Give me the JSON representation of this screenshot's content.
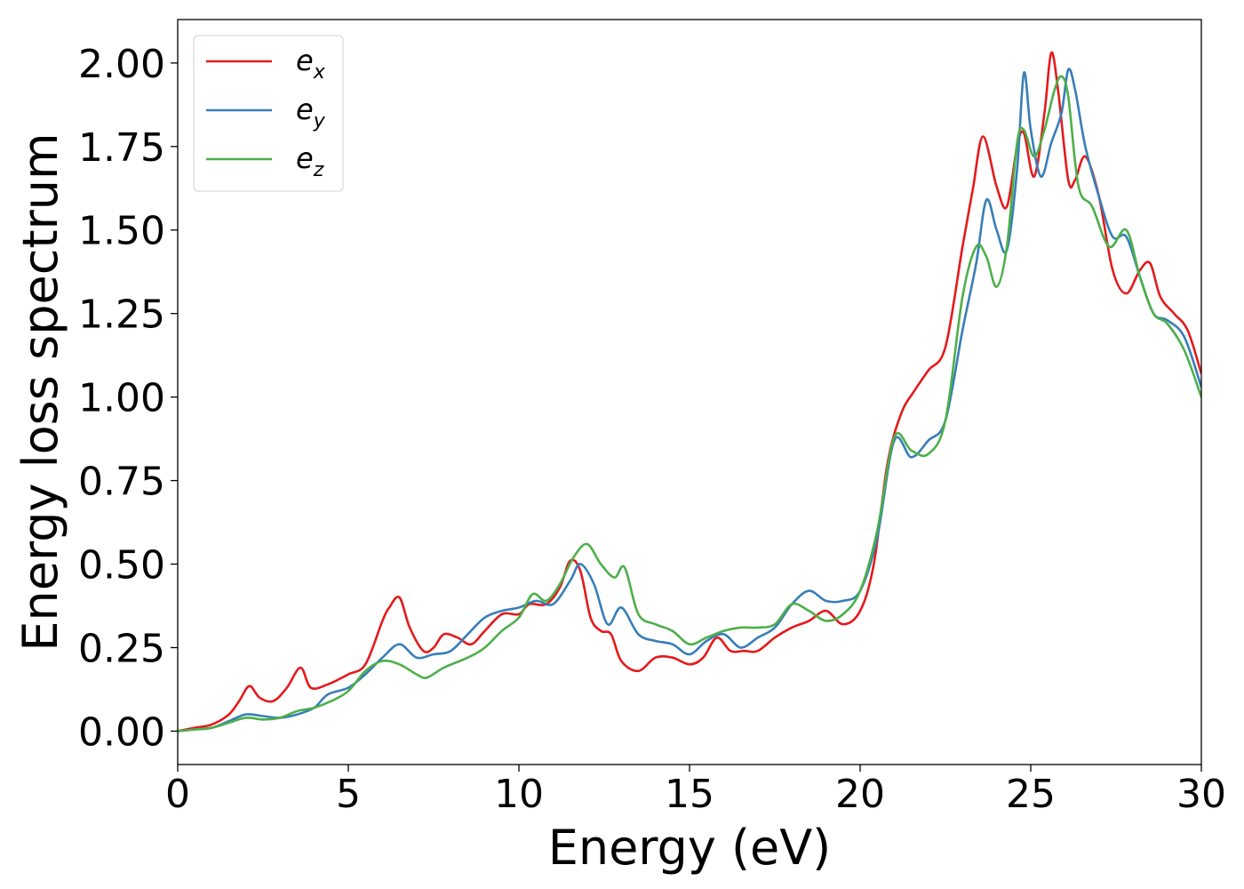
{
  "chart_data": {
    "type": "line",
    "xlabel": "Energy (eV)",
    "ylabel": "Energy loss spectrum",
    "xlim": [
      0,
      30
    ],
    "ylim": [
      -0.1,
      2.13
    ],
    "xticks": [
      "0",
      "5",
      "10",
      "15",
      "20",
      "25",
      "30"
    ],
    "yticks": [
      "0.00",
      "0.25",
      "0.50",
      "0.75",
      "1.00",
      "1.25",
      "1.50",
      "1.75",
      "2.00"
    ],
    "grid": false,
    "legend_position": "top-left",
    "series": [
      {
        "name": "e_x",
        "label_main": "e",
        "label_sub": "x",
        "color": "#e41a1c",
        "x": [
          0,
          0.5,
          1,
          1.5,
          1.8,
          2.1,
          2.4,
          2.8,
          3.2,
          3.6,
          3.9,
          4.4,
          5,
          5.5,
          6,
          6.2,
          6.5,
          6.8,
          7.2,
          7.5,
          7.8,
          8.2,
          8.6,
          9,
          9.5,
          10,
          10.3,
          10.8,
          11.2,
          11.5,
          11.8,
          12.1,
          12.4,
          12.7,
          13,
          13.5,
          14,
          14.5,
          15,
          15.4,
          15.8,
          16.2,
          16.6,
          17,
          17.5,
          18,
          18.5,
          19,
          19.5,
          20,
          20.4,
          20.8,
          21.2,
          21.6,
          22,
          22.5,
          23,
          23.3,
          23.6,
          24,
          24.3,
          24.6,
          24.8,
          25.1,
          25.4,
          25.6,
          25.8,
          26.1,
          26.3,
          26.6,
          27,
          27.4,
          27.8,
          28.2,
          28.5,
          28.8,
          29.2,
          29.6,
          30
        ],
        "y": [
          0.0,
          0.01,
          0.02,
          0.05,
          0.09,
          0.135,
          0.1,
          0.09,
          0.13,
          0.19,
          0.13,
          0.14,
          0.17,
          0.2,
          0.33,
          0.37,
          0.4,
          0.31,
          0.24,
          0.25,
          0.29,
          0.28,
          0.26,
          0.3,
          0.35,
          0.35,
          0.38,
          0.38,
          0.43,
          0.51,
          0.48,
          0.34,
          0.3,
          0.29,
          0.21,
          0.18,
          0.22,
          0.22,
          0.2,
          0.22,
          0.28,
          0.24,
          0.24,
          0.24,
          0.28,
          0.31,
          0.33,
          0.36,
          0.32,
          0.36,
          0.5,
          0.8,
          0.95,
          1.02,
          1.08,
          1.15,
          1.45,
          1.62,
          1.78,
          1.63,
          1.57,
          1.75,
          1.79,
          1.66,
          1.85,
          2.03,
          1.92,
          1.65,
          1.65,
          1.72,
          1.6,
          1.38,
          1.31,
          1.38,
          1.4,
          1.3,
          1.25,
          1.2,
          1.07
        ]
      },
      {
        "name": "e_y",
        "label_main": "e",
        "label_sub": "y",
        "color": "#377eb8",
        "x": [
          0,
          0.5,
          1,
          1.5,
          2,
          2.5,
          3,
          3.5,
          4,
          4.4,
          5,
          5.5,
          6,
          6.5,
          7,
          7.5,
          8,
          8.5,
          9,
          9.5,
          10,
          10.5,
          11,
          11.5,
          11.8,
          12.2,
          12.6,
          13,
          13.5,
          14,
          14.5,
          15,
          15.5,
          16,
          16.5,
          17,
          17.5,
          18,
          18.5,
          19,
          19.5,
          20,
          20.5,
          21,
          21.5,
          22,
          22.5,
          23,
          23.4,
          23.7,
          24,
          24.3,
          24.6,
          24.8,
          25,
          25.3,
          25.6,
          25.9,
          26.1,
          26.3,
          26.6,
          27,
          27.4,
          27.8,
          28.2,
          28.6,
          29,
          29.5,
          30
        ],
        "y": [
          0.0,
          0.005,
          0.01,
          0.03,
          0.05,
          0.045,
          0.04,
          0.05,
          0.07,
          0.11,
          0.13,
          0.17,
          0.22,
          0.26,
          0.22,
          0.23,
          0.24,
          0.29,
          0.34,
          0.36,
          0.37,
          0.39,
          0.38,
          0.45,
          0.5,
          0.44,
          0.32,
          0.37,
          0.29,
          0.27,
          0.26,
          0.23,
          0.27,
          0.29,
          0.25,
          0.28,
          0.31,
          0.38,
          0.42,
          0.39,
          0.39,
          0.42,
          0.58,
          0.87,
          0.82,
          0.87,
          0.93,
          1.2,
          1.4,
          1.59,
          1.5,
          1.44,
          1.68,
          1.97,
          1.8,
          1.66,
          1.76,
          1.85,
          1.98,
          1.92,
          1.75,
          1.6,
          1.48,
          1.48,
          1.36,
          1.25,
          1.23,
          1.18,
          1.03
        ]
      },
      {
        "name": "e_z",
        "label_main": "e",
        "label_sub": "z",
        "color": "#4daf4a",
        "x": [
          0,
          0.5,
          1,
          1.5,
          2,
          2.5,
          3,
          3.5,
          4,
          4.5,
          5,
          5.5,
          6,
          6.5,
          7,
          7.3,
          7.8,
          8.5,
          9,
          9.5,
          10,
          10.4,
          10.8,
          11.2,
          11.6,
          12,
          12.4,
          12.8,
          13.1,
          13.5,
          14,
          14.5,
          15,
          15.5,
          16,
          16.5,
          17,
          17.5,
          18,
          18.5,
          19,
          19.5,
          20,
          20.5,
          21,
          21.5,
          22,
          22.5,
          23,
          23.4,
          23.7,
          24,
          24.3,
          24.6,
          24.8,
          25.1,
          25.4,
          25.7,
          25.9,
          26.1,
          26.4,
          26.8,
          27.3,
          27.8,
          28.2,
          28.6,
          29,
          29.5,
          30
        ],
        "y": [
          0.0,
          0.005,
          0.01,
          0.025,
          0.04,
          0.035,
          0.04,
          0.06,
          0.07,
          0.09,
          0.12,
          0.18,
          0.21,
          0.2,
          0.17,
          0.16,
          0.19,
          0.22,
          0.25,
          0.3,
          0.34,
          0.41,
          0.39,
          0.44,
          0.52,
          0.56,
          0.5,
          0.46,
          0.49,
          0.35,
          0.32,
          0.3,
          0.26,
          0.28,
          0.3,
          0.31,
          0.31,
          0.32,
          0.38,
          0.36,
          0.33,
          0.35,
          0.42,
          0.6,
          0.88,
          0.84,
          0.83,
          0.93,
          1.3,
          1.45,
          1.42,
          1.33,
          1.45,
          1.76,
          1.8,
          1.72,
          1.8,
          1.92,
          1.96,
          1.9,
          1.63,
          1.57,
          1.45,
          1.5,
          1.36,
          1.25,
          1.22,
          1.14,
          1.0
        ]
      }
    ]
  }
}
